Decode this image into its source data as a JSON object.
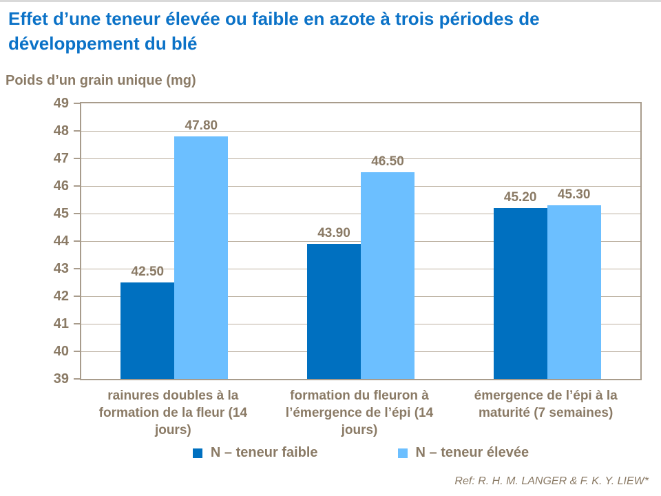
{
  "title": "Effet d’une teneur élevée ou faible en azote à trois périodes de développement du blé",
  "reference": "Ref: R. H. M. LANGER & F. K. Y. LIEW*",
  "colors": {
    "title_blue": "#0B72C7",
    "text_brown": "#8A7A65",
    "gridline": "#BCB0A0",
    "plot_border": "#A89C8C",
    "series_low_blue": "#0070C0",
    "series_high_blue": "#6CBFFF"
  },
  "chart_data": {
    "type": "bar",
    "title": "Effet d’une teneur élevée ou faible en azote à trois périodes de développement du blé",
    "ylabel": "Poids d’un grain unique (mg)",
    "xlabel": "",
    "ylim": [
      39,
      49
    ],
    "ytick_step": 1,
    "yticks": [
      39,
      40,
      41,
      42,
      43,
      44,
      45,
      46,
      47,
      48,
      49
    ],
    "grid": true,
    "legend_position": "bottom",
    "value_labels_shown": true,
    "categories": [
      "rainures doubles à la formation de la fleur (14 jours)",
      "formation du fleuron à l’émergence de l’épi (14 jours)",
      "émergence de l’épi à la maturité (7 semaines)"
    ],
    "series": [
      {
        "name": "N – teneur faible",
        "color": "#0070C0",
        "values": [
          42.5,
          43.9,
          45.2
        ]
      },
      {
        "name": "N – teneur élevée",
        "color": "#6CBFFF",
        "values": [
          47.8,
          46.5,
          45.3
        ]
      }
    ]
  }
}
